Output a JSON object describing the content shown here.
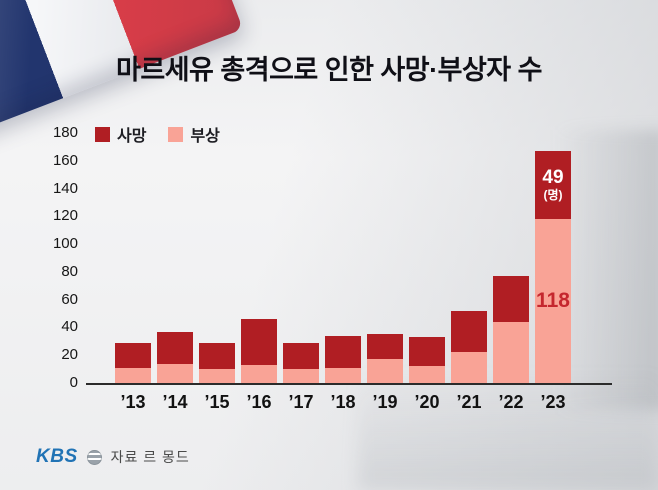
{
  "title": "마르세유 총격으로 인한 사망·부상자 수",
  "legend": {
    "deaths": "사망",
    "injuries": "부상"
  },
  "annotations": {
    "deaths_value": "49",
    "deaths_unit": "(명)",
    "injuries_value": "118"
  },
  "footer": {
    "logo": "KBS",
    "source": "자료 르 몽드"
  },
  "colors": {
    "deaths": "#b01e23",
    "injuries": "#f9a396",
    "injuries_value_text": "#c5272e",
    "kbs_blue": "#2173b5"
  },
  "chart_data": {
    "type": "bar",
    "stacked": true,
    "title": "마르세유 총격으로 인한 사망·부상자 수",
    "categories": [
      "’13",
      "’14",
      "’15",
      "’16",
      "’17",
      "’18",
      "’19",
      "’20",
      "’21",
      "’22",
      "’23"
    ],
    "series": [
      {
        "name": "부상",
        "color": "#f9a396",
        "values": [
          11,
          14,
          10,
          13,
          10,
          11,
          17,
          12,
          22,
          44,
          118
        ]
      },
      {
        "name": "사망",
        "color": "#b01e23",
        "values": [
          18,
          23,
          19,
          33,
          19,
          23,
          18,
          21,
          30,
          33,
          49
        ]
      }
    ],
    "xlabel": "",
    "ylabel": "",
    "ylim": [
      0,
      180
    ],
    "yticks": [
      0,
      20,
      40,
      60,
      80,
      100,
      120,
      140,
      160,
      180
    ],
    "grid": false,
    "legend_position": "top-left"
  }
}
